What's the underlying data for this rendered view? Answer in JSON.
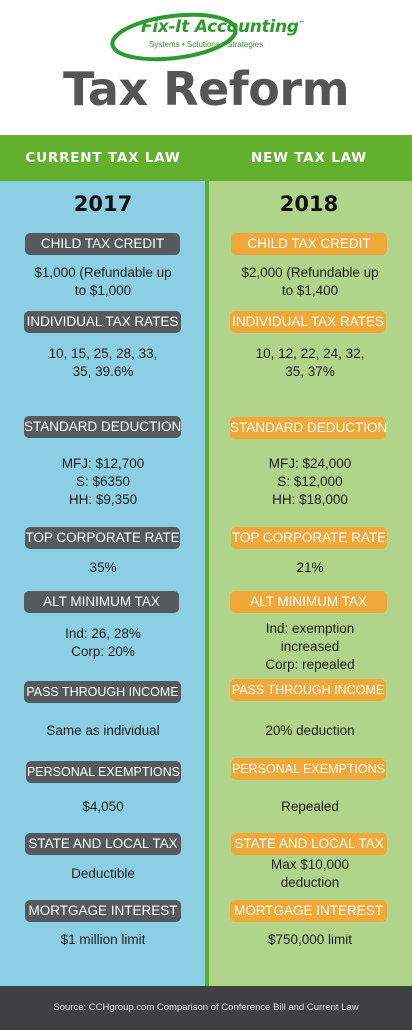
{
  "logo": {
    "name": "Fix-It Accounting",
    "tm": "™",
    "tagline": "Systems • Solutions • Strategies"
  },
  "title": "Tax Reform",
  "columns": {
    "current": "CURRENT TAX LAW",
    "new": "NEW TAX LAW"
  },
  "years": {
    "current": "2017",
    "new": "2018"
  },
  "rows": [
    {
      "label": "CHILD TAX CREDIT",
      "current": [
        "$1,000 (Refundable up",
        "to $1,000"
      ],
      "new": [
        "$2,000 (Refundable up",
        "to $1,400"
      ]
    },
    {
      "label": "INDIVIDUAL TAX RATES",
      "current": [
        "10, 15, 25, 28, 33,",
        "35, 39.6%"
      ],
      "new": [
        "10, 12, 22, 24, 32,",
        "35, 37%"
      ]
    },
    {
      "label": "STANDARD DEDUCTION",
      "current": [
        "MFJ: $12,700",
        "S: $6350",
        "HH: $9,350"
      ],
      "new": [
        "MFJ: $24,000",
        "S: $12,000",
        "HH: $18,000"
      ]
    },
    {
      "label": "TOP CORPORATE RATE",
      "current": [
        "35%"
      ],
      "new": [
        "21%"
      ]
    },
    {
      "label": "ALT MINIMUM TAX",
      "current": [
        "Ind: 26, 28%",
        "Corp: 20%"
      ],
      "new": [
        "Ind: exemption",
        "increased",
        "Corp: repealed"
      ]
    },
    {
      "label": "PASS THROUGH INCOME",
      "current": [
        "Same as individual"
      ],
      "new": [
        "20% deduction"
      ]
    },
    {
      "label": "PERSONAL EXEMPTIONS",
      "current": [
        "$4,050"
      ],
      "new": [
        "Repealed"
      ]
    },
    {
      "label": "STATE AND LOCAL TAX",
      "current": [
        "Deductible"
      ],
      "new": [
        "Max $10,000",
        "deduction"
      ]
    },
    {
      "label": "MORTGAGE INTEREST",
      "current": [
        "$1 million limit"
      ],
      "new": [
        "$750,000 limit"
      ]
    }
  ],
  "footer": "Source: CCHgroup.com Comparison of Conference Bill and Current Law",
  "colors": {
    "green": "#63b02f",
    "blue_column": "#8ccfe4",
    "green_column": "#b1d48b",
    "gray_pill": "#555a5e",
    "orange_pill": "#f0a83a",
    "title_gray": "#555555",
    "footer_bg": "#3d4144"
  }
}
